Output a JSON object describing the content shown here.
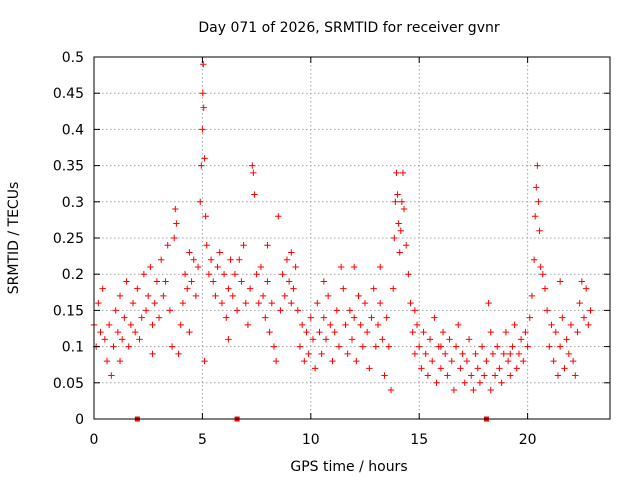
{
  "chart_data": {
    "type": "scatter",
    "title": "Day 071 of 2026, SRMTID for receiver gvnr",
    "xlabel": "GPS time / hours",
    "ylabel": "SRMTID / TECUs",
    "xlim": [
      0,
      23.8
    ],
    "ylim": [
      0,
      0.5
    ],
    "xticks": [
      0,
      5,
      10,
      15,
      20
    ],
    "xtick_labels": [
      "0",
      "5",
      "10",
      "15",
      "20"
    ],
    "yticks": [
      0,
      0.05,
      0.1,
      0.15,
      0.2,
      0.25,
      0.3,
      0.35,
      0.4,
      0.45,
      0.5
    ],
    "ytick_labels": [
      "0",
      "0.05",
      "0.1",
      "0.15",
      "0.2",
      "0.25",
      "0.3",
      "0.35",
      "0.4",
      "0.45",
      "0.5"
    ],
    "grid": true,
    "marker": "+",
    "color": "#ff0000",
    "series": [
      {
        "name": "SRMTID",
        "points": [
          [
            0.0,
            0.13
          ],
          [
            0.1,
            0.1
          ],
          [
            0.2,
            0.16
          ],
          [
            0.3,
            0.12
          ],
          [
            0.4,
            0.18
          ],
          [
            0.5,
            0.11
          ],
          [
            0.6,
            0.08
          ],
          [
            0.7,
            0.13
          ],
          [
            0.8,
            0.06
          ],
          [
            0.9,
            0.1
          ],
          [
            1.0,
            0.15
          ],
          [
            1.1,
            0.12
          ],
          [
            1.2,
            0.17
          ],
          [
            1.3,
            0.11
          ],
          [
            1.4,
            0.14
          ],
          [
            1.5,
            0.19
          ],
          [
            1.6,
            0.1
          ],
          [
            1.7,
            0.13
          ],
          [
            1.8,
            0.16
          ],
          [
            1.9,
            0.12
          ],
          [
            2.0,
            0.18
          ],
          [
            2.1,
            0.11
          ],
          [
            2.2,
            0.14
          ],
          [
            2.3,
            0.2
          ],
          [
            2.4,
            0.15
          ],
          [
            2.5,
            0.17
          ],
          [
            2.6,
            0.21
          ],
          [
            2.7,
            0.13
          ],
          [
            2.8,
            0.16
          ],
          [
            2.9,
            0.19
          ],
          [
            3.0,
            0.14
          ],
          [
            3.1,
            0.22
          ],
          [
            3.2,
            0.17
          ],
          [
            3.3,
            0.19
          ],
          [
            3.4,
            0.24
          ],
          [
            3.5,
            0.15
          ],
          [
            3.6,
            0.1
          ],
          [
            3.7,
            0.25
          ],
          [
            3.75,
            0.29
          ],
          [
            3.8,
            0.27
          ],
          [
            3.9,
            0.09
          ],
          [
            4.0,
            0.13
          ],
          [
            4.1,
            0.16
          ],
          [
            4.2,
            0.2
          ],
          [
            4.3,
            0.18
          ],
          [
            4.4,
            0.23
          ],
          [
            4.5,
            0.19
          ],
          [
            4.6,
            0.22
          ],
          [
            4.7,
            0.17
          ],
          [
            4.8,
            0.21
          ],
          [
            4.9,
            0.3
          ],
          [
            4.95,
            0.35
          ],
          [
            5.0,
            0.4
          ],
          [
            5.02,
            0.45
          ],
          [
            5.04,
            0.49
          ],
          [
            5.06,
            0.43
          ],
          [
            5.1,
            0.36
          ],
          [
            5.15,
            0.28
          ],
          [
            5.2,
            0.24
          ],
          [
            5.1,
            0.08
          ],
          [
            5.3,
            0.2
          ],
          [
            5.4,
            0.22
          ],
          [
            5.5,
            0.19
          ],
          [
            5.6,
            0.17
          ],
          [
            5.7,
            0.21
          ],
          [
            5.8,
            0.23
          ],
          [
            5.9,
            0.16
          ],
          [
            6.0,
            0.2
          ],
          [
            6.1,
            0.14
          ],
          [
            6.2,
            0.18
          ],
          [
            6.3,
            0.22
          ],
          [
            6.4,
            0.17
          ],
          [
            6.5,
            0.2
          ],
          [
            6.6,
            0.15
          ],
          [
            6.7,
            0.22
          ],
          [
            6.8,
            0.19
          ],
          [
            6.9,
            0.24
          ],
          [
            7.0,
            0.16
          ],
          [
            7.1,
            0.13
          ],
          [
            7.2,
            0.18
          ],
          [
            7.3,
            0.35
          ],
          [
            7.35,
            0.34
          ],
          [
            7.4,
            0.31
          ],
          [
            7.5,
            0.2
          ],
          [
            7.6,
            0.16
          ],
          [
            7.7,
            0.21
          ],
          [
            7.8,
            0.17
          ],
          [
            7.9,
            0.14
          ],
          [
            8.0,
            0.19
          ],
          [
            8.1,
            0.12
          ],
          [
            8.2,
            0.16
          ],
          [
            8.3,
            0.1
          ],
          [
            8.4,
            0.08
          ],
          [
            8.5,
            0.28
          ],
          [
            8.6,
            0.15
          ],
          [
            8.7,
            0.2
          ],
          [
            8.8,
            0.17
          ],
          [
            8.9,
            0.22
          ],
          [
            9.0,
            0.19
          ],
          [
            9.1,
            0.23
          ],
          [
            9.2,
            0.18
          ],
          [
            9.3,
            0.21
          ],
          [
            9.4,
            0.15
          ],
          [
            9.5,
            0.1
          ],
          [
            9.6,
            0.13
          ],
          [
            9.7,
            0.08
          ],
          [
            9.8,
            0.12
          ],
          [
            9.9,
            0.09
          ],
          [
            10.0,
            0.14
          ],
          [
            10.1,
            0.11
          ],
          [
            10.2,
            0.07
          ],
          [
            10.3,
            0.16
          ],
          [
            10.4,
            0.12
          ],
          [
            10.5,
            0.09
          ],
          [
            10.6,
            0.14
          ],
          [
            10.7,
            0.11
          ],
          [
            10.8,
            0.17
          ],
          [
            10.9,
            0.13
          ],
          [
            11.0,
            0.08
          ],
          [
            11.1,
            0.12
          ],
          [
            11.2,
            0.15
          ],
          [
            11.3,
            0.1
          ],
          [
            11.4,
            0.21
          ],
          [
            11.5,
            0.18
          ],
          [
            11.6,
            0.13
          ],
          [
            11.7,
            0.09
          ],
          [
            11.8,
            0.15
          ],
          [
            11.9,
            0.11
          ],
          [
            12.0,
            0.14
          ],
          [
            12.1,
            0.08
          ],
          [
            12.2,
            0.17
          ],
          [
            12.3,
            0.13
          ],
          [
            12.4,
            0.1
          ],
          [
            12.5,
            0.16
          ],
          [
            12.6,
            0.12
          ],
          [
            12.7,
            0.07
          ],
          [
            12.8,
            0.14
          ],
          [
            12.9,
            0.18
          ],
          [
            13.0,
            0.1
          ],
          [
            13.1,
            0.13
          ],
          [
            13.2,
            0.16
          ],
          [
            13.3,
            0.11
          ],
          [
            13.4,
            0.06
          ],
          [
            13.5,
            0.14
          ],
          [
            13.6,
            0.1
          ],
          [
            13.7,
            0.04
          ],
          [
            13.8,
            0.18
          ],
          [
            13.85,
            0.25
          ],
          [
            13.9,
            0.3
          ],
          [
            13.95,
            0.34
          ],
          [
            14.0,
            0.31
          ],
          [
            14.05,
            0.27
          ],
          [
            14.1,
            0.23
          ],
          [
            14.15,
            0.26
          ],
          [
            14.2,
            0.3
          ],
          [
            14.25,
            0.34
          ],
          [
            14.3,
            0.29
          ],
          [
            14.4,
            0.24
          ],
          [
            14.5,
            0.2
          ],
          [
            14.6,
            0.16
          ],
          [
            14.7,
            0.12
          ],
          [
            14.8,
            0.09
          ],
          [
            14.9,
            0.13
          ],
          [
            15.0,
            0.1
          ],
          [
            15.1,
            0.07
          ],
          [
            15.2,
            0.12
          ],
          [
            15.3,
            0.09
          ],
          [
            15.4,
            0.06
          ],
          [
            15.5,
            0.11
          ],
          [
            15.6,
            0.08
          ],
          [
            15.7,
            0.14
          ],
          [
            15.8,
            0.05
          ],
          [
            15.9,
            0.1
          ],
          [
            16.0,
            0.07
          ],
          [
            16.1,
            0.12
          ],
          [
            16.2,
            0.09
          ],
          [
            16.3,
            0.06
          ],
          [
            16.4,
            0.11
          ],
          [
            16.5,
            0.08
          ],
          [
            16.6,
            0.04
          ],
          [
            16.7,
            0.1
          ],
          [
            16.8,
            0.13
          ],
          [
            16.9,
            0.07
          ],
          [
            17.0,
            0.09
          ],
          [
            17.1,
            0.05
          ],
          [
            17.2,
            0.08
          ],
          [
            17.3,
            0.11
          ],
          [
            17.4,
            0.06
          ],
          [
            17.5,
            0.04
          ],
          [
            17.6,
            0.09
          ],
          [
            17.7,
            0.07
          ],
          [
            17.8,
            0.05
          ],
          [
            17.9,
            0.1
          ],
          [
            18.0,
            0.06
          ],
          [
            18.1,
            0.08
          ],
          [
            18.2,
            0.16
          ],
          [
            18.3,
            0.12
          ],
          [
            18.4,
            0.09
          ],
          [
            18.5,
            0.06
          ],
          [
            18.6,
            0.1
          ],
          [
            18.7,
            0.07
          ],
          [
            18.8,
            0.05
          ],
          [
            18.9,
            0.09
          ],
          [
            19.0,
            0.12
          ],
          [
            19.1,
            0.08
          ],
          [
            19.2,
            0.06
          ],
          [
            19.3,
            0.1
          ],
          [
            19.4,
            0.13
          ],
          [
            19.5,
            0.07
          ],
          [
            19.6,
            0.09
          ],
          [
            19.7,
            0.11
          ],
          [
            19.8,
            0.08
          ],
          [
            19.9,
            0.12
          ],
          [
            20.0,
            0.1
          ],
          [
            20.1,
            0.14
          ],
          [
            20.2,
            0.17
          ],
          [
            20.3,
            0.22
          ],
          [
            20.35,
            0.28
          ],
          [
            20.4,
            0.32
          ],
          [
            20.45,
            0.35
          ],
          [
            20.5,
            0.3
          ],
          [
            20.55,
            0.26
          ],
          [
            20.6,
            0.21
          ],
          [
            20.7,
            0.2
          ],
          [
            20.8,
            0.18
          ],
          [
            20.9,
            0.15
          ],
          [
            21.0,
            0.1
          ],
          [
            21.1,
            0.13
          ],
          [
            21.2,
            0.08
          ],
          [
            21.3,
            0.12
          ],
          [
            21.4,
            0.06
          ],
          [
            21.5,
            0.1
          ],
          [
            21.6,
            0.14
          ],
          [
            21.7,
            0.07
          ],
          [
            21.8,
            0.11
          ],
          [
            21.9,
            0.09
          ],
          [
            22.0,
            0.13
          ],
          [
            22.1,
            0.08
          ],
          [
            22.2,
            0.06
          ],
          [
            22.3,
            0.12
          ],
          [
            22.4,
            0.16
          ],
          [
            22.5,
            0.19
          ],
          [
            22.6,
            0.14
          ],
          [
            22.7,
            0.18
          ],
          [
            22.8,
            0.13
          ],
          [
            22.9,
            0.15
          ],
          [
            1.2,
            0.08
          ],
          [
            2.7,
            0.09
          ],
          [
            4.4,
            0.12
          ],
          [
            6.2,
            0.11
          ],
          [
            8.0,
            0.24
          ],
          [
            9.1,
            0.16
          ],
          [
            10.6,
            0.19
          ],
          [
            12.0,
            0.21
          ],
          [
            13.2,
            0.21
          ],
          [
            14.8,
            0.15
          ],
          [
            16.0,
            0.1
          ],
          [
            18.3,
            0.04
          ],
          [
            19.2,
            0.09
          ],
          [
            21.5,
            0.19
          ]
        ]
      }
    ],
    "gap_markers": [
      2.0,
      6.6,
      18.1
    ]
  }
}
